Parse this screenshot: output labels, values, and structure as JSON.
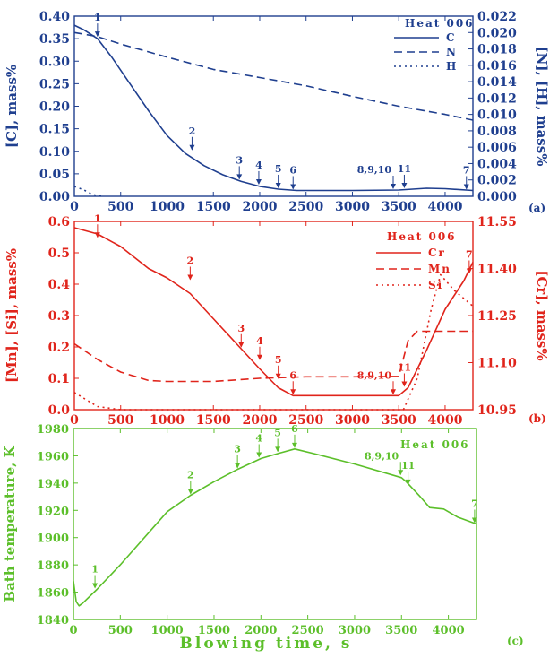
{
  "colors": {
    "panel_a": "#1f3f8f",
    "panel_b": "#e0241b",
    "panel_c": "#5cbf2a"
  },
  "chart_data": [
    {
      "type": "line",
      "panel_label": "(a)",
      "legend_title": "Heat 006",
      "legend_position": "top-right",
      "ylabel": "[C], mass%",
      "ylabel_right": "[N], [H], mass%",
      "xlim": [
        0,
        4300
      ],
      "ylim": [
        0,
        0.4
      ],
      "ylim_right": [
        0,
        0.022
      ],
      "x_ticks": [
        "0",
        "500",
        "1000",
        "1500",
        "2000",
        "2500",
        "3000",
        "3500",
        "4000"
      ],
      "y_ticks": [
        "0.00",
        "0.05",
        "0.10",
        "0.15",
        "0.20",
        "0.25",
        "0.30",
        "0.35",
        "0.40"
      ],
      "y_ticks_right": [
        "0.000",
        "0.002",
        "0.004",
        "0.006",
        "0.008",
        "0.010",
        "0.012",
        "0.014",
        "0.016",
        "0.018",
        "0.020",
        "0.022"
      ],
      "series": [
        {
          "name": "C",
          "axis": "left",
          "dash": "solid",
          "x": [
            0,
            100,
            250,
            400,
            600,
            800,
            1000,
            1200,
            1400,
            1600,
            1800,
            2000,
            2200,
            2400,
            2700,
            3000,
            3500,
            3800,
            4000,
            4300
          ],
          "y": [
            0.38,
            0.37,
            0.35,
            0.31,
            0.25,
            0.19,
            0.135,
            0.095,
            0.068,
            0.048,
            0.033,
            0.022,
            0.016,
            0.013,
            0.013,
            0.013,
            0.014,
            0.018,
            0.017,
            0.013
          ]
        },
        {
          "name": "N",
          "axis": "right",
          "dash": "dashed",
          "x": [
            0,
            250,
            500,
            1000,
            1500,
            2000,
            2500,
            3000,
            3500,
            4000,
            4300
          ],
          "y": [
            0.02,
            0.0195,
            0.0186,
            0.017,
            0.0155,
            0.0145,
            0.0135,
            0.0122,
            0.011,
            0.01,
            0.0093
          ]
        },
        {
          "name": "H",
          "axis": "right",
          "dash": "dotted",
          "x": [
            0,
            100,
            200,
            300
          ],
          "y": [
            0.0012,
            0.0008,
            0.0002,
            0.0
          ]
        }
      ],
      "annotations": [
        {
          "text": "1",
          "x": 250,
          "y": 0.352
        },
        {
          "text": "2",
          "x": 1270,
          "y": 0.1
        },
        {
          "text": "3",
          "x": 1780,
          "y": 0.035
        },
        {
          "text": "4",
          "x": 1990,
          "y": 0.024
        },
        {
          "text": "5",
          "x": 2200,
          "y": 0.016
        },
        {
          "text": "6",
          "x": 2360,
          "y": 0.013
        },
        {
          "text": "8,9,10",
          "x": 3440,
          "y": 0.014
        },
        {
          "text": "11",
          "x": 3560,
          "y": 0.016
        },
        {
          "text": "7",
          "x": 4230,
          "y": 0.013
        }
      ]
    },
    {
      "type": "line",
      "panel_label": "(b)",
      "legend_title": "Heat 006",
      "legend_position": "top-right",
      "ylabel": "[Mn], [Si], mass%",
      "ylabel_right": "[Cr], mass%",
      "xlim": [
        0,
        4300
      ],
      "ylim": [
        0,
        0.6
      ],
      "ylim_right": [
        10.95,
        11.55
      ],
      "x_ticks": [
        "0",
        "500",
        "1000",
        "1500",
        "2000",
        "2500",
        "3000",
        "3500",
        "4000"
      ],
      "y_ticks": [
        "0.0",
        "0.1",
        "0.2",
        "0.3",
        "0.4",
        "0.5",
        "0.6"
      ],
      "y_ticks_right": [
        "10.95",
        "11.10",
        "11.25",
        "11.40",
        "11.55"
      ],
      "series": [
        {
          "name": "Cr",
          "axis": "right",
          "dash": "solid",
          "x": [
            0,
            250,
            500,
            800,
            1000,
            1250,
            1500,
            1750,
            2000,
            2200,
            2360,
            2500,
            3000,
            3500,
            3600,
            3800,
            4000,
            4200,
            4300
          ],
          "y": [
            11.53,
            11.51,
            11.47,
            11.4,
            11.37,
            11.32,
            11.24,
            11.16,
            11.08,
            11.02,
            10.995,
            10.995,
            10.995,
            10.995,
            11.02,
            11.14,
            11.27,
            11.36,
            11.42
          ]
        },
        {
          "name": "Mn",
          "axis": "left",
          "dash": "dashed",
          "x": [
            0,
            250,
            500,
            800,
            1000,
            1500,
            2000,
            2500,
            3000,
            3500,
            3600,
            3700,
            4300
          ],
          "y": [
            0.21,
            0.16,
            0.12,
            0.093,
            0.09,
            0.09,
            0.1,
            0.105,
            0.105,
            0.106,
            0.22,
            0.25,
            0.25
          ]
        },
        {
          "name": "Si",
          "axis": "left",
          "dash": "dotted",
          "x": [
            0,
            250,
            500,
            3550,
            3700,
            3850,
            3950,
            4100,
            4300
          ],
          "y": [
            0.055,
            0.01,
            0.0,
            0.0,
            0.1,
            0.32,
            0.43,
            0.38,
            0.33
          ]
        }
      ],
      "annotations": [
        {
          "text": "1",
          "x": 250,
          "y": 0.545
        },
        {
          "text": "2",
          "x": 1250,
          "y": 0.41
        },
        {
          "text": "3",
          "x": 1800,
          "y": 0.195
        },
        {
          "text": "4",
          "x": 2000,
          "y": 0.155
        },
        {
          "text": "5",
          "x": 2200,
          "y": 0.095
        },
        {
          "text": "6",
          "x": 2360,
          "y": 0.045
        },
        {
          "text": "8,9,10",
          "x": 3440,
          "y": 0.045
        },
        {
          "text": "11",
          "x": 3560,
          "y": 0.07
        },
        {
          "text": "7",
          "x": 4260,
          "y": 0.43
        }
      ]
    },
    {
      "type": "line",
      "panel_label": "(c)",
      "legend_title": "Heat 006",
      "legend_position": "top-right",
      "xlabel": "Blowing time, s",
      "ylabel": "Bath temperature, K",
      "xlim": [
        0,
        4300
      ],
      "ylim": [
        1840,
        1980
      ],
      "x_ticks": [
        "0",
        "500",
        "1000",
        "1500",
        "2000",
        "2500",
        "3000",
        "3500",
        "4000"
      ],
      "y_ticks": [
        "1840",
        "1860",
        "1880",
        "1900",
        "1920",
        "1940",
        "1960",
        "1980"
      ],
      "series": [
        {
          "name": "",
          "dash": "solid",
          "x": [
            0,
            30,
            60,
            100,
            250,
            500,
            1000,
            1250,
            1500,
            1750,
            2000,
            2200,
            2360,
            2600,
            3000,
            3500,
            3550,
            3700,
            3800,
            3950,
            4100,
            4300
          ],
          "y": [
            1868,
            1853,
            1850,
            1852,
            1862,
            1880,
            1919,
            1931,
            1941,
            1950,
            1958,
            1962,
            1965,
            1961,
            1954,
            1944,
            1941,
            1930,
            1922,
            1921,
            1915,
            1910
          ]
        }
      ],
      "annotations": [
        {
          "text": "1",
          "x": 230,
          "y": 1862
        },
        {
          "text": "2",
          "x": 1250,
          "y": 1931
        },
        {
          "text": "3",
          "x": 1750,
          "y": 1950
        },
        {
          "text": "4",
          "x": 1980,
          "y": 1958
        },
        {
          "text": "5",
          "x": 2180,
          "y": 1962
        },
        {
          "text": "6",
          "x": 2360,
          "y": 1965
        },
        {
          "text": "8,9,10",
          "x": 3490,
          "y": 1945
        },
        {
          "text": "11",
          "x": 3570,
          "y": 1938
        },
        {
          "text": "7",
          "x": 4280,
          "y": 1910
        }
      ]
    }
  ]
}
